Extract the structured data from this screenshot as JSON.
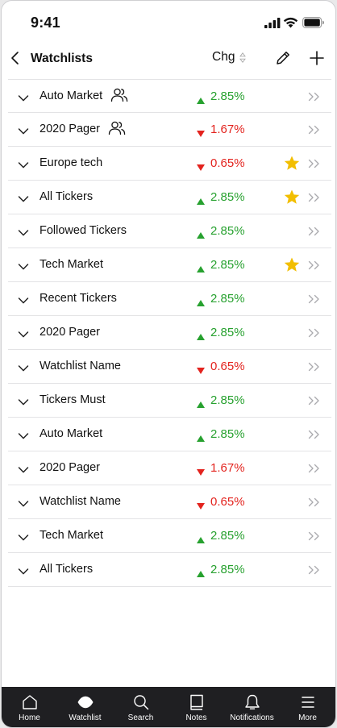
{
  "status": {
    "time": "9:41"
  },
  "header": {
    "title": "Watchlists",
    "change_label": "Chg"
  },
  "rows": [
    {
      "name": "Auto Market",
      "shared": true,
      "change": "2.85%",
      "direction": "up",
      "starred": false
    },
    {
      "name": "2020 Pager",
      "shared": true,
      "change": "1.67%",
      "direction": "down",
      "starred": false
    },
    {
      "name": "Europe tech",
      "shared": false,
      "change": "0.65%",
      "direction": "down",
      "starred": true
    },
    {
      "name": "All Tickers",
      "shared": false,
      "change": "2.85%",
      "direction": "up",
      "starred": true
    },
    {
      "name": "Followed Tickers",
      "shared": false,
      "change": "2.85%",
      "direction": "up",
      "starred": false
    },
    {
      "name": "Tech Market",
      "shared": false,
      "change": "2.85%",
      "direction": "up",
      "starred": true
    },
    {
      "name": "Recent Tickers",
      "shared": false,
      "change": "2.85%",
      "direction": "up",
      "starred": false
    },
    {
      "name": "2020 Pager",
      "shared": false,
      "change": "2.85%",
      "direction": "up",
      "starred": false
    },
    {
      "name": "Watchlist Name",
      "shared": false,
      "change": "0.65%",
      "direction": "down",
      "starred": false
    },
    {
      "name": "Tickers Must",
      "shared": false,
      "change": "2.85%",
      "direction": "up",
      "starred": false
    },
    {
      "name": "Auto Market",
      "shared": false,
      "change": "2.85%",
      "direction": "up",
      "starred": false
    },
    {
      "name": "2020 Pager",
      "shared": false,
      "change": "1.67%",
      "direction": "down",
      "starred": false
    },
    {
      "name": "Watchlist Name",
      "shared": false,
      "change": "0.65%",
      "direction": "down",
      "starred": false
    },
    {
      "name": "Tech Market",
      "shared": false,
      "change": "2.85%",
      "direction": "up",
      "starred": false
    },
    {
      "name": "All Tickers",
      "shared": false,
      "change": "2.85%",
      "direction": "up",
      "starred": false
    }
  ],
  "tabs": [
    {
      "label": "Home",
      "icon": "home-icon"
    },
    {
      "label": "Watchlist",
      "icon": "watchlist-icon"
    },
    {
      "label": "Search",
      "icon": "search-icon"
    },
    {
      "label": "Notes",
      "icon": "notes-icon"
    },
    {
      "label": "Notifications",
      "icon": "bell-icon"
    },
    {
      "label": "More",
      "icon": "menu-icon"
    }
  ],
  "colors": {
    "up": "#27a12f",
    "down": "#e3231e",
    "star": "#f2be00",
    "tabbar": "#1f1f22"
  }
}
